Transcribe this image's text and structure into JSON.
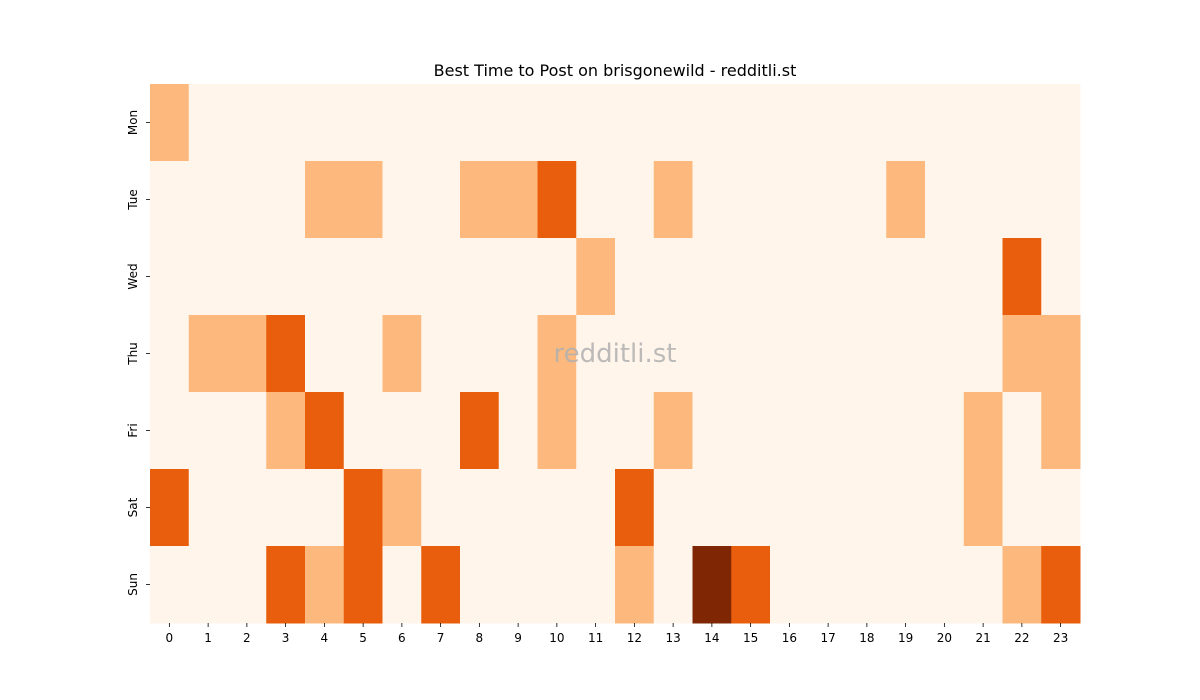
{
  "chart_data": {
    "type": "heatmap",
    "title": "Best Time to Post on brisgonewild - redditli.st",
    "watermark": "redditli.st",
    "x_categories": [
      "0",
      "1",
      "2",
      "3",
      "4",
      "5",
      "6",
      "7",
      "8",
      "9",
      "10",
      "11",
      "12",
      "13",
      "14",
      "15",
      "16",
      "17",
      "18",
      "19",
      "20",
      "21",
      "22",
      "23"
    ],
    "y_categories": [
      "Mon",
      "Tue",
      "Wed",
      "Thu",
      "Fri",
      "Sat",
      "Sun"
    ],
    "values": [
      [
        1,
        0,
        0,
        0,
        0,
        0,
        0,
        0,
        0,
        0,
        0,
        0,
        0,
        0,
        0,
        0,
        0,
        0,
        0,
        0,
        0,
        0,
        0,
        0
      ],
      [
        0,
        0,
        0,
        0,
        1,
        1,
        0,
        0,
        1,
        1,
        2,
        0,
        0,
        1,
        0,
        0,
        0,
        0,
        0,
        1,
        0,
        0,
        0,
        0
      ],
      [
        0,
        0,
        0,
        0,
        0,
        0,
        0,
        0,
        0,
        0,
        0,
        1,
        0,
        0,
        0,
        0,
        0,
        0,
        0,
        0,
        0,
        0,
        2,
        0
      ],
      [
        0,
        1,
        1,
        2,
        0,
        0,
        1,
        0,
        0,
        0,
        1,
        0,
        0,
        0,
        0,
        0,
        0,
        0,
        0,
        0,
        0,
        0,
        1,
        1
      ],
      [
        0,
        0,
        0,
        1,
        2,
        0,
        0,
        0,
        2,
        0,
        1,
        0,
        0,
        1,
        0,
        0,
        0,
        0,
        0,
        0,
        0,
        1,
        0,
        1
      ],
      [
        2,
        0,
        0,
        0,
        0,
        2,
        1,
        0,
        0,
        0,
        0,
        0,
        2,
        0,
        0,
        0,
        0,
        0,
        0,
        0,
        0,
        1,
        0,
        0
      ],
      [
        0,
        0,
        0,
        2,
        1,
        2,
        0,
        2,
        0,
        0,
        0,
        0,
        1,
        0,
        3,
        2,
        0,
        0,
        0,
        0,
        0,
        0,
        1,
        2
      ]
    ],
    "value_range": [
      0,
      3
    ],
    "colorscale": [
      "#fff5eb",
      "#fdb97d",
      "#e95e0d",
      "#7f2704"
    ]
  }
}
